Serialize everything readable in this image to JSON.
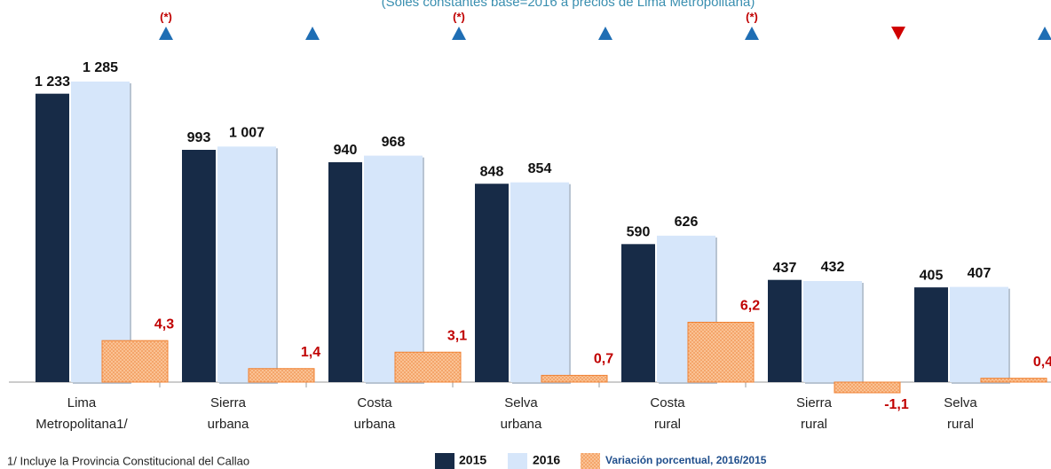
{
  "chart_data": {
    "type": "bar",
    "subtitle": "(Soles constantes base=2016 a precios de Lima Metropolitana)",
    "categories": [
      "Lima Metropolitana1/",
      "Sierra urbana",
      "Costa urbana",
      "Selva urbana",
      "Costa rural",
      "Sierra rural",
      "Selva rural"
    ],
    "series": [
      {
        "name": "2015",
        "color": "#172b47",
        "values": [
          1233,
          993,
          940,
          848,
          590,
          437,
          405
        ],
        "value_labels": [
          "1 233",
          "993",
          "940",
          "848",
          "590",
          "437",
          "405"
        ]
      },
      {
        "name": "2016",
        "color": "#d6e6fa",
        "values": [
          1285,
          1007,
          968,
          854,
          626,
          432,
          407
        ],
        "value_labels": [
          "1 285",
          "1 007",
          "968",
          "854",
          "626",
          "432",
          "407"
        ]
      },
      {
        "name": "Variación porcentual, 2016/2015",
        "color": "#f9b47f",
        "axis": "y2",
        "values": [
          4.3,
          1.4,
          3.1,
          0.7,
          6.2,
          -1.1,
          0.4
        ],
        "value_labels": [
          "4,3",
          "1,4",
          "3,1",
          "0,7",
          "6,2",
          "-1,1",
          "0,4"
        ]
      }
    ],
    "significance": [
      "(*)",
      null,
      "(*)",
      null,
      "(*)",
      null,
      null
    ],
    "ylim": [
      0,
      1300
    ],
    "y2lim": [
      0,
      31.5
    ],
    "footnote": "1/ Incluye la Provincia Constitucional del Callao"
  }
}
